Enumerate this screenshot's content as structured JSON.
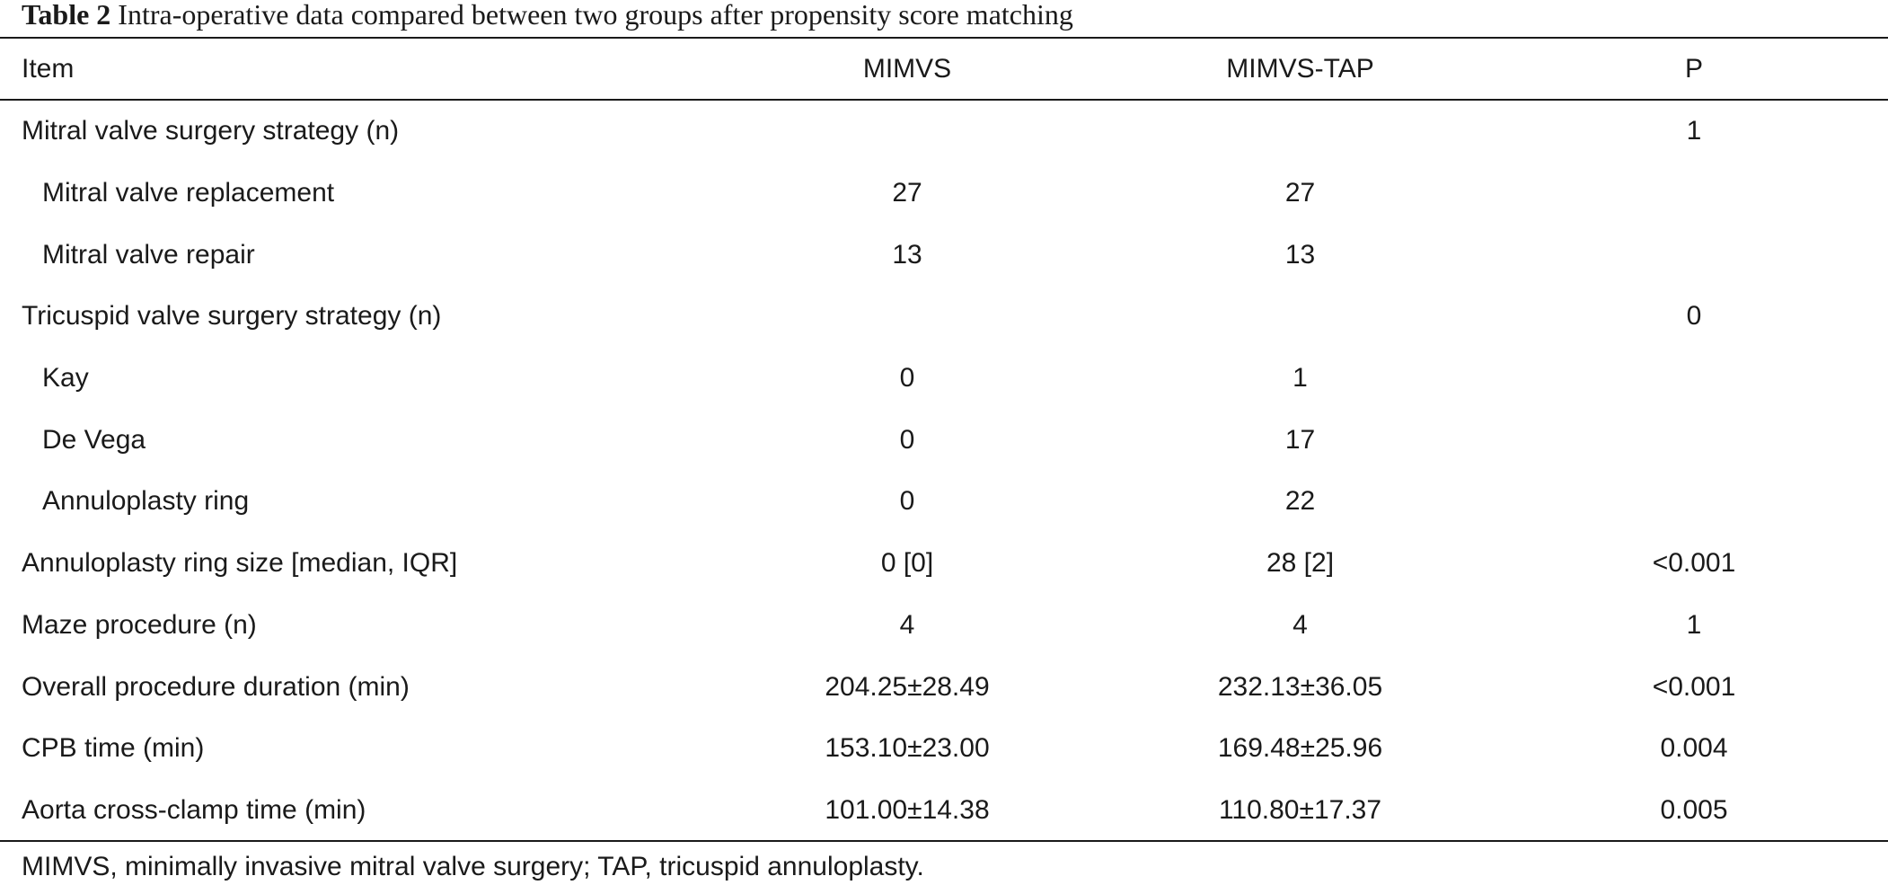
{
  "caption": {
    "label": "Table 2",
    "text": "Intra-operative data compared between two groups after propensity score matching"
  },
  "header": {
    "item": "Item",
    "group_a": "MIMVS",
    "group_b": "MIMVS-TAP",
    "p": "P"
  },
  "rows": [
    {
      "item": "Mitral valve surgery strategy (n)",
      "a": "",
      "b": "",
      "p": "1"
    },
    {
      "item": "Mitral valve replacement",
      "a": "27",
      "b": "27",
      "p": ""
    },
    {
      "item": "Mitral valve repair",
      "a": "13",
      "b": "13",
      "p": ""
    },
    {
      "item": "Tricuspid valve surgery strategy (n)",
      "a": "",
      "b": "",
      "p": "0"
    },
    {
      "item": "Kay",
      "a": "0",
      "b": "1",
      "p": ""
    },
    {
      "item": "De Vega",
      "a": "0",
      "b": "17",
      "p": ""
    },
    {
      "item": "Annuloplasty ring",
      "a": "0",
      "b": "22",
      "p": ""
    },
    {
      "item": "Annuloplasty ring size [median, IQR]",
      "a": "0 [0]",
      "b": "28 [2]",
      "p": "<0.001"
    },
    {
      "item": "Maze procedure (n)",
      "a": "4",
      "b": "4",
      "p": "1"
    },
    {
      "item": "Overall procedure duration (min)",
      "a": "204.25±28.49",
      "b": "232.13±36.05",
      "p": "<0.001"
    },
    {
      "item": "CPB time (min)",
      "a": "153.10±23.00",
      "b": "169.48±25.96",
      "p": "0.004"
    },
    {
      "item": "Aorta cross-clamp time (min)",
      "a": "101.00±14.38",
      "b": "110.80±17.37",
      "p": "0.005"
    }
  ],
  "footnote": "MIMVS, minimally invasive mitral valve surgery; TAP, tricuspid annuloplasty."
}
